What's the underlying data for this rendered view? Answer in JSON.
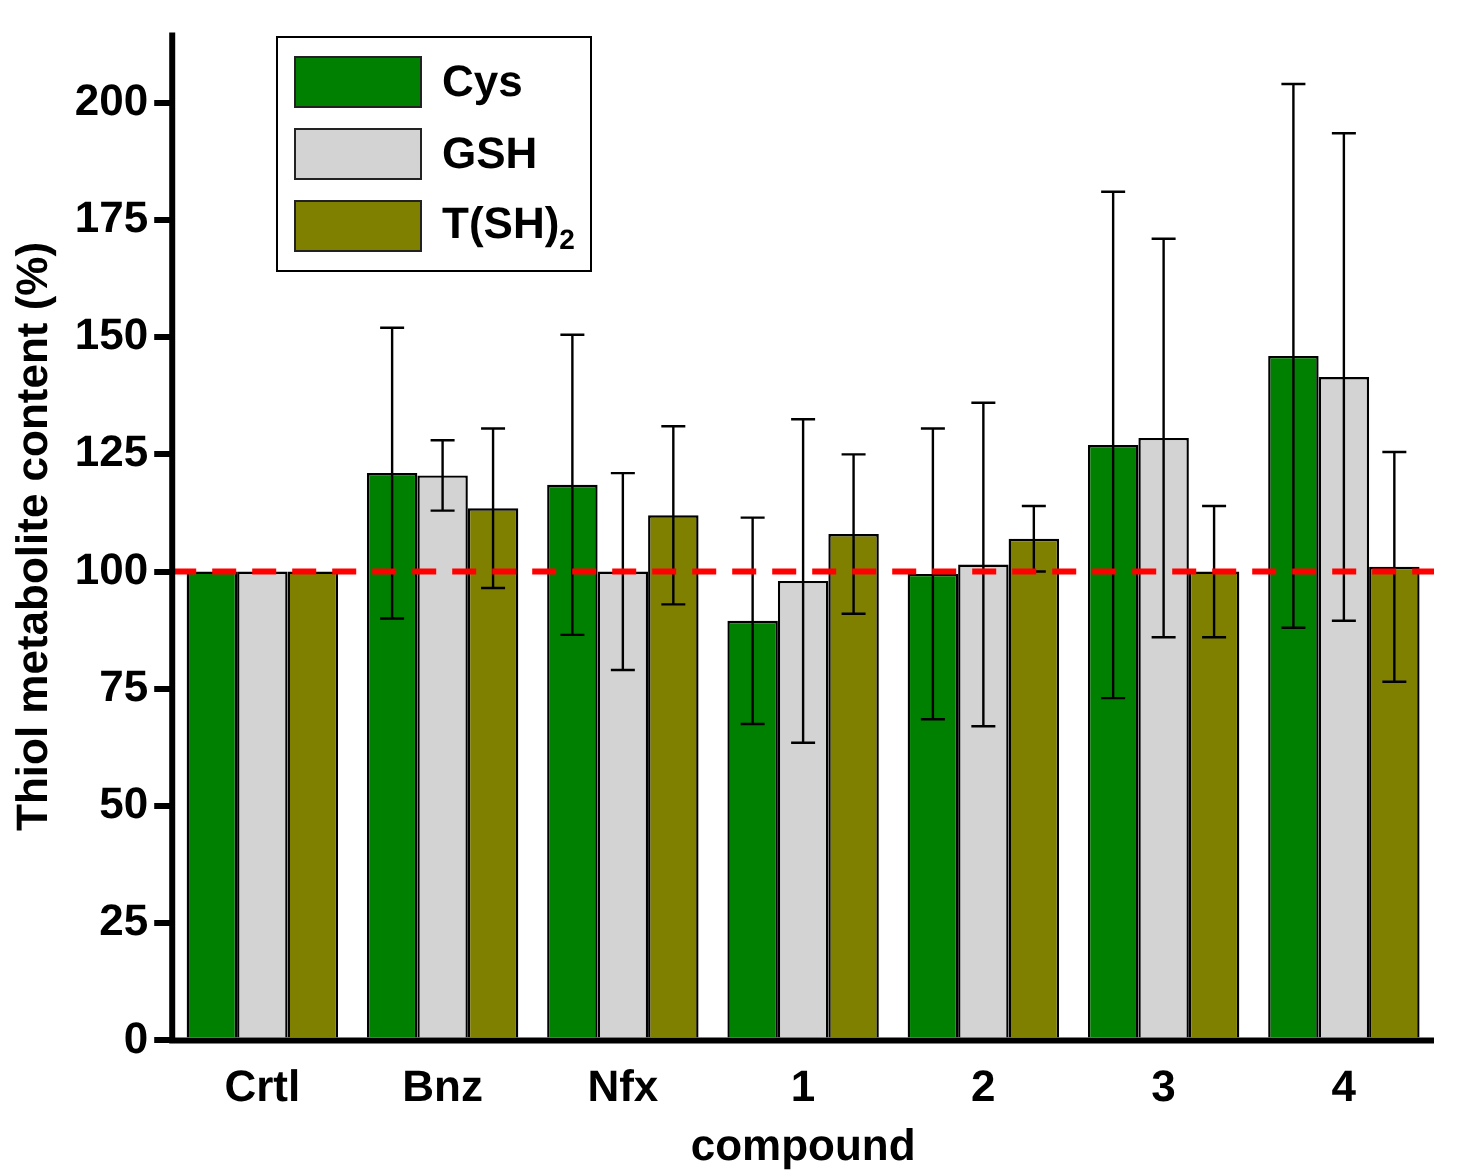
{
  "chart_data": {
    "type": "bar",
    "xlabel": "compound",
    "ylabel": "Thiol metabolite content (%)",
    "categories": [
      "Crtl",
      "Bnz",
      "Nfx",
      "1",
      "2",
      "3",
      "4"
    ],
    "series": [
      {
        "name": "Cys",
        "color": "#008000",
        "values": [
          100,
          121,
          118.5,
          89.5,
          99.5,
          127,
          146
        ],
        "errors": [
          null,
          31,
          32,
          22,
          31,
          54,
          58
        ]
      },
      {
        "name": "GSH",
        "color": "#d3d3d3",
        "values": [
          100,
          120.5,
          100,
          98,
          101.5,
          128.5,
          141.5
        ],
        "errors": [
          null,
          7.5,
          21,
          34.5,
          34.5,
          42.5,
          52
        ]
      },
      {
        "name": "T(SH)$_{2}$",
        "color": "#808000",
        "values": [
          100,
          113.5,
          112,
          108,
          107,
          100,
          101
        ],
        "errors": [
          null,
          17,
          19,
          17,
          7,
          14,
          24.5
        ]
      }
    ],
    "ylim": [
      0,
      215
    ],
    "yticks": [
      0,
      25,
      50,
      75,
      100,
      125,
      150,
      175,
      200
    ],
    "ref_lines": [
      {
        "axis": "y",
        "value": 100,
        "color": "#ff0000",
        "line_style": "dashed"
      }
    ],
    "grid": false,
    "legend": "top left"
  }
}
